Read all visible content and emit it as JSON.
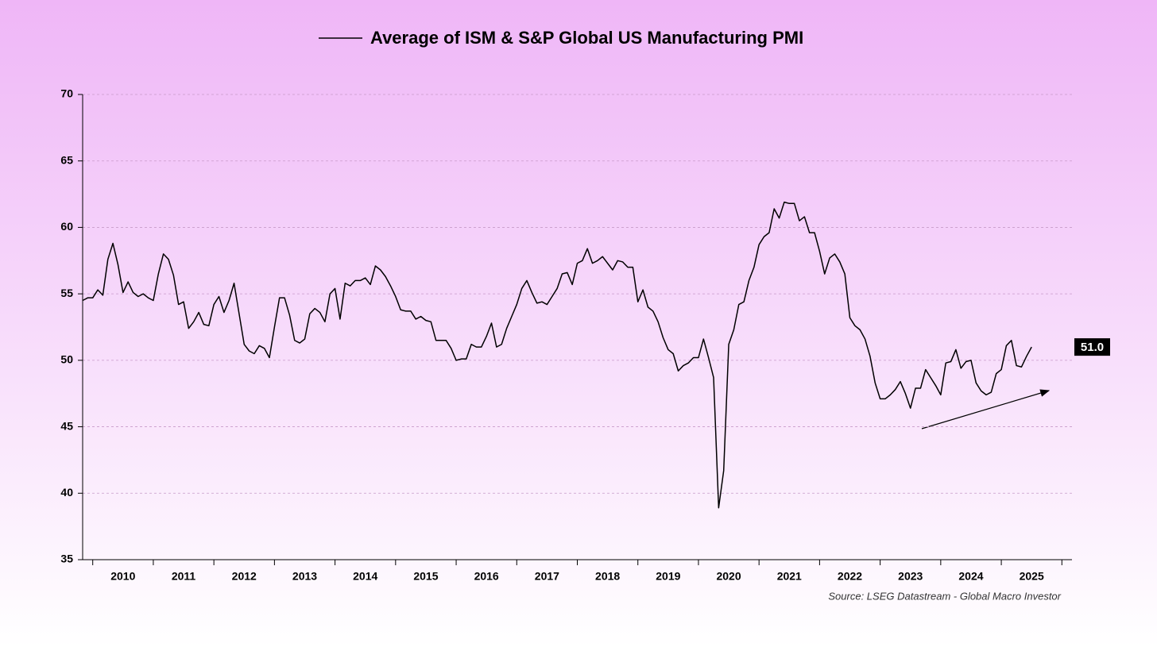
{
  "chart_data": {
    "type": "line",
    "series": [
      {
        "name": "Average of ISM & S&P Global US Manufacturing PMI",
        "color": "#000000",
        "values": [
          54.5,
          54.7,
          54.7,
          55.3,
          54.9,
          57.6,
          58.8,
          57.2,
          55.1,
          55.9,
          55.1,
          54.8,
          55.0,
          54.7,
          54.5,
          56.5,
          58.0,
          57.6,
          56.4,
          54.2,
          54.4,
          52.4,
          52.9,
          53.6,
          52.7,
          52.6,
          54.2,
          54.8,
          53.6,
          54.5,
          55.8,
          53.5,
          51.2,
          50.7,
          50.5,
          51.1,
          50.9,
          50.2,
          52.5,
          54.7,
          54.7,
          53.4,
          51.5,
          51.3,
          51.6,
          53.5,
          53.9,
          53.6,
          52.9,
          55.0,
          55.4,
          53.1,
          55.8,
          55.6,
          56.0,
          56.0,
          56.2,
          55.7,
          57.1,
          56.8,
          56.3,
          55.6,
          54.8,
          53.8,
          53.7,
          53.7,
          53.1,
          53.3,
          53.0,
          52.9,
          51.5,
          51.5,
          51.5,
          50.9,
          50.0,
          50.1,
          50.1,
          51.2,
          51.0,
          51.0,
          51.8,
          52.8,
          51.0,
          51.2,
          52.4,
          53.3,
          54.2,
          55.4,
          56.0,
          55.1,
          54.3,
          54.4,
          54.2,
          54.8,
          55.4,
          56.5,
          56.6,
          55.7,
          57.3,
          57.5,
          58.4,
          57.3,
          57.5,
          57.8,
          57.3,
          56.8,
          57.5,
          57.4,
          57.0,
          57.0,
          54.4,
          55.3,
          54.0,
          53.7,
          52.9,
          51.7,
          50.8,
          50.5,
          49.2,
          49.6,
          49.8,
          50.2,
          50.2,
          51.6,
          50.2,
          48.7,
          38.9,
          41.7,
          51.2,
          52.3,
          54.2,
          54.4,
          56.0,
          57.0,
          58.7,
          59.3,
          59.6,
          61.4,
          60.7,
          61.9,
          61.8,
          61.8,
          60.5,
          60.8,
          59.6,
          59.6,
          58.2,
          56.5,
          57.7,
          58.0,
          57.4,
          56.5,
          53.2,
          52.6,
          52.3,
          51.6,
          50.3,
          48.3,
          47.1,
          47.1,
          47.4,
          47.8,
          48.4,
          47.5,
          46.4,
          47.9,
          47.9,
          49.3,
          48.7,
          48.1,
          47.4,
          49.8,
          49.9,
          50.8,
          49.4,
          49.9,
          50.0,
          48.3,
          47.7,
          47.4,
          47.6,
          49.0,
          49.3,
          51.1,
          51.5,
          49.6,
          49.5,
          50.3,
          51.0
        ]
      }
    ],
    "categories": [
      null,
      null,
      null,
      null,
      null,
      null,
      null,
      null,
      null,
      null,
      null,
      null,
      null,
      null,
      null,
      null,
      null,
      null,
      null,
      null,
      null,
      null,
      null,
      null,
      null,
      null,
      null,
      null,
      null,
      null,
      null,
      null,
      null,
      null,
      null,
      null,
      null,
      null,
      null,
      null,
      null,
      null,
      null,
      null,
      null,
      null,
      null,
      null,
      null,
      null,
      null,
      null,
      null,
      null,
      null,
      null,
      null,
      null,
      null,
      null,
      null,
      null,
      null,
      null,
      null,
      null,
      null,
      null,
      null,
      null,
      null,
      null,
      null,
      null,
      null,
      null,
      null,
      null,
      null,
      null,
      null,
      null,
      null,
      null,
      null,
      null,
      null,
      null,
      null,
      null,
      null,
      null,
      null,
      null,
      null,
      null,
      null,
      null,
      null,
      null,
      null,
      null,
      null,
      null,
      null,
      null,
      null,
      null,
      null,
      null,
      null,
      null,
      null,
      null,
      null,
      null,
      null,
      null,
      null,
      null,
      null,
      null,
      null,
      null,
      null,
      null,
      null,
      null,
      null,
      null,
      null,
      null,
      null,
      null,
      null,
      null,
      null,
      null,
      null,
      null,
      null,
      null,
      null,
      null,
      null,
      null,
      null,
      null,
      null,
      null,
      null,
      null,
      null,
      null,
      null,
      null,
      null,
      null,
      null,
      null,
      null,
      null,
      null,
      null,
      null,
      null,
      null,
      null,
      null,
      null,
      null,
      null,
      null,
      null,
      null,
      null,
      null,
      null,
      null,
      null,
      null,
      null,
      null,
      null,
      null,
      null,
      null,
      null,
      null
    ],
    "year_labels": [
      "2010",
      "2011",
      "2012",
      "2013",
      "2014",
      "2015",
      "2016",
      "2017",
      "2018",
      "2019",
      "2020",
      "2021",
      "2022",
      "2023",
      "2024",
      "2025"
    ],
    "end_label": {
      "value": 51.0,
      "label": "51.0"
    },
    "ylim": [
      35,
      70
    ],
    "yticks": [
      35,
      40,
      45,
      50,
      55,
      60,
      65,
      70
    ],
    "grid": true,
    "source": "Source: LSEG Datastream - Global Macro Investor"
  }
}
